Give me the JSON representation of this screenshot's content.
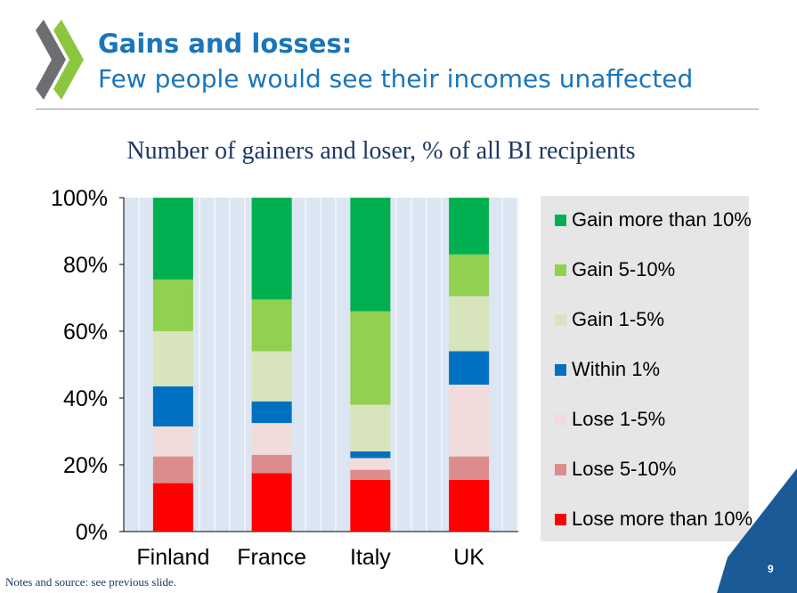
{
  "header": {
    "title": "Gains and losses:",
    "subtitle": "Few people would see their incomes unaffected"
  },
  "footer": {
    "note": "Notes and source: see previous slide.",
    "page_number": "9"
  },
  "colors": {
    "brand_blue": "#1a75bb",
    "logo_green": "#8cc63f",
    "logo_grey": "#6d6e71",
    "plot_bg": "#dce6f2",
    "corner_blue": "#1a5a96"
  },
  "chart_data": {
    "type": "bar",
    "stacked": true,
    "title": "Number of gainers and loser, % of all BI recipients",
    "xlabel": "",
    "ylabel": "",
    "ylim": [
      0,
      100
    ],
    "yticks": [
      0,
      20,
      40,
      60,
      80,
      100
    ],
    "ytick_labels": [
      "0%",
      "20%",
      "40%",
      "60%",
      "80%",
      "100%"
    ],
    "categories": [
      "Finland",
      "France",
      "Italy",
      "UK"
    ],
    "legend_position": "right",
    "grid": false,
    "series": [
      {
        "name": "Lose more than 10%",
        "color": "#ff0000",
        "values": [
          14.5,
          17.5,
          15.5,
          15.5
        ]
      },
      {
        "name": "Lose 5-10%",
        "color": "#dc8c8c",
        "values": [
          8,
          5.5,
          3,
          7
        ]
      },
      {
        "name": "Lose 1-5%",
        "color": "#f2dcdb",
        "values": [
          9,
          9.5,
          3.5,
          21.5
        ]
      },
      {
        "name": "Within 1%",
        "color": "#0070c0",
        "values": [
          12,
          6.5,
          2,
          10
        ]
      },
      {
        "name": "Gain 1-5%",
        "color": "#d8e4bc",
        "values": [
          16.5,
          15,
          14,
          16.5
        ]
      },
      {
        "name": "Gain 5-10%",
        "color": "#92d050",
        "values": [
          15.5,
          15.5,
          28,
          12.5
        ]
      },
      {
        "name": "Gain more than 10%",
        "color": "#00b050",
        "values": [
          24.5,
          30.5,
          34,
          17
        ]
      }
    ]
  }
}
